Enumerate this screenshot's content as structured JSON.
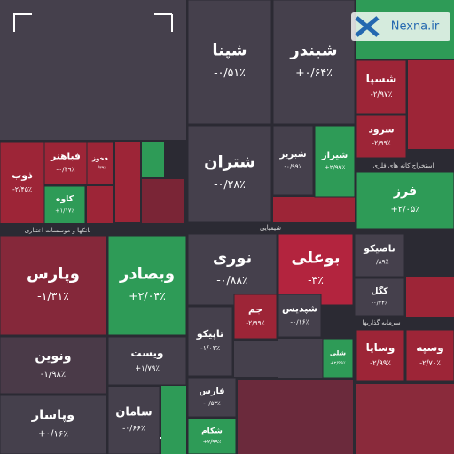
{
  "chart_data": {
    "type": "treemap",
    "brand": "Nexna.ir",
    "sections": [
      "بانکها و موسسات اعتباری",
      "شیمیایی",
      "استخراج کانه های فلزی",
      "سرمایه گذاریها"
    ],
    "tiles": [
      {
        "name": "شپنا",
        "change": -0.51,
        "change_label": "-۰/۵۱٪",
        "color": "#45404c"
      },
      {
        "name": "شبندر",
        "change": 0.64,
        "change_label": "+۰/۶۴٪",
        "color": "#45404c"
      },
      {
        "name": "شتران",
        "change": -0.28,
        "change_label": "-۰/۲۸٪",
        "color": "#45404c"
      },
      {
        "name": "شبریز",
        "change": -0.99,
        "change_label": "-۰/۹۹٪",
        "color": "#45404c"
      },
      {
        "name": "شیراز",
        "change": 2.99,
        "change_label": "+۲/۹۹٪",
        "color": "#2e9b57"
      },
      {
        "name": "ذوب",
        "change": -2.45,
        "change_label": "-۲/۴۵٪",
        "color": "#9d2537"
      },
      {
        "name": "فباهنر",
        "change": -0.49,
        "change_label": "-۰/۴۹٪",
        "color": "#9d2537"
      },
      {
        "name": "فخوز",
        "change": -0.39,
        "change_label": "-۰/۳۹٪",
        "color": "#9d2537"
      },
      {
        "name": "کاوه",
        "change": 1.17,
        "change_label": "+۱/۱۷٪",
        "color": "#2e9b57"
      },
      {
        "name": "فرز",
        "change": 2.05,
        "change_label": "+۲/۰۵٪",
        "color": "#2e9b57"
      },
      {
        "name": "وپارس",
        "change": -1.31,
        "change_label": "-۱/۳۱٪",
        "color": "#85283a"
      },
      {
        "name": "وبصادر",
        "change": 2.04,
        "change_label": "+۲/۰۴٪",
        "color": "#2e9b57"
      },
      {
        "name": "نوری",
        "change": -0.88,
        "change_label": "-۰/۸۸٪",
        "color": "#45404c"
      },
      {
        "name": "بوعلی",
        "change": -3,
        "change_label": "-۳٪",
        "color": "#b3243e"
      },
      {
        "name": "تاصیکو",
        "change": -0.89,
        "change_label": "-۰/۸۹٪",
        "color": "#45404c"
      },
      {
        "name": "کگل",
        "change": -0.44,
        "change_label": "-۰/۴۴٪",
        "color": "#45404c"
      },
      {
        "name": "ونوین",
        "change": -1.98,
        "change_label": "-۱/۹۸٪",
        "color": "#4a3a48"
      },
      {
        "name": "وپاسار",
        "change": 0.16,
        "change_label": "+۰/۱۶٪",
        "color": "#45404c"
      },
      {
        "name": "ویست",
        "change": 1.79,
        "change_label": "+۱/۷۹٪",
        "color": "#45404c"
      },
      {
        "name": "سامان",
        "change": -0.66,
        "change_label": "-۰/۶۶٪",
        "color": "#45404c"
      },
      {
        "name": "تاپیکو",
        "change": -1.03,
        "change_label": "-۱/۰۳٪",
        "color": "#45404c"
      },
      {
        "name": "جم",
        "change": -2.99,
        "change_label": "-۲/۹۹٪",
        "color": "#9d2537"
      },
      {
        "name": "شپدیس",
        "change": -0.16,
        "change_label": "-۰/۱۶٪",
        "color": "#45404c"
      },
      {
        "name": "فارس",
        "change": -0.53,
        "change_label": "-۰/۵۳٪",
        "color": "#45404c"
      },
      {
        "name": "شکام",
        "change": 2.99,
        "change_label": "+۲/۹۹٪",
        "color": "#2e9b57"
      },
      {
        "name": "وساپا",
        "change": -2.99,
        "change_label": "-۲/۹۹٪",
        "color": "#9d2537"
      },
      {
        "name": "وسپه",
        "change": -2.7,
        "change_label": "-۲/۷۰٪",
        "color": "#9d2537"
      },
      {
        "name": "شسپا",
        "change": -2.97,
        "change_label": "-۲/۹۷٪",
        "color": "#9d2537"
      },
      {
        "name": "سرود",
        "change": -2.99,
        "change_label": "-۲/۹۹٪",
        "color": "#9d2537"
      },
      {
        "name": "شلی",
        "change": 2.99,
        "change_label": "+۲/۹۹٪",
        "color": "#2e9b57"
      }
    ]
  }
}
